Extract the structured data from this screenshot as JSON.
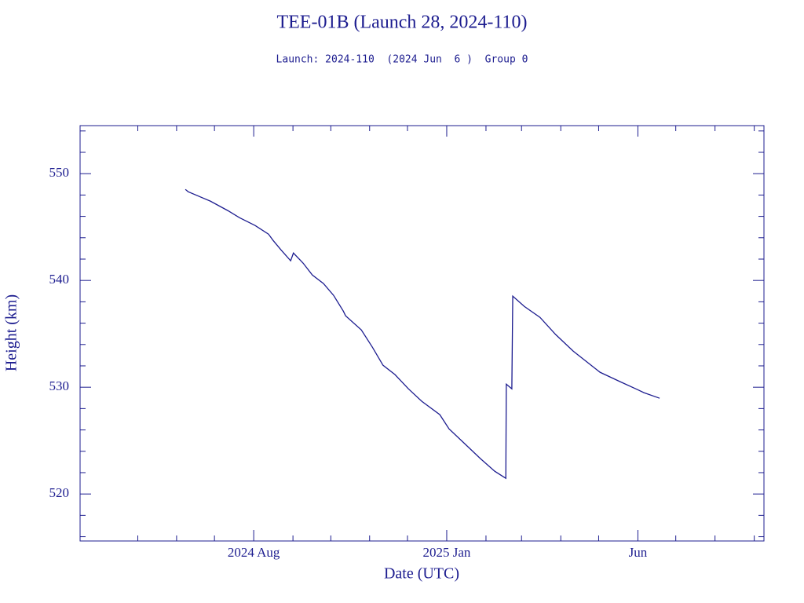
{
  "chart_data": {
    "type": "line",
    "title": "TEE-01B (Launch 28, 2024-110)",
    "subtitle": "Launch: 2024-110  (2024 Jun  6 )  Group 0",
    "xlabel": "Date (UTC)",
    "ylabel": "Height (km)",
    "color": "#1c1c8f",
    "x": [
      2024.434,
      2024.44,
      2024.488,
      2024.526,
      2024.551,
      2024.585,
      2024.614,
      2024.624,
      2024.641,
      2024.662,
      2024.668,
      2024.689,
      2024.709,
      2024.733,
      2024.755,
      2024.776,
      2024.781,
      2024.815,
      2024.839,
      2024.862,
      2024.888,
      2024.917,
      2024.946,
      2024.985,
      2025.005,
      2025.039,
      2025.073,
      2025.104,
      2025.128,
      2025.129,
      2025.141,
      2025.143,
      2025.168,
      2025.202,
      2025.236,
      2025.274,
      2025.332,
      2025.376,
      2025.413,
      2025.427,
      2025.461
    ],
    "values": [
      548.53,
      548.31,
      547.43,
      546.54,
      545.88,
      545.15,
      544.34,
      543.75,
      542.87,
      541.84,
      542.57,
      541.62,
      540.51,
      539.71,
      538.6,
      537.13,
      536.69,
      535.37,
      533.75,
      532.06,
      531.18,
      529.85,
      528.68,
      527.43,
      526.1,
      524.71,
      523.31,
      522.13,
      521.47,
      530.29,
      529.85,
      538.53,
      537.57,
      536.54,
      534.93,
      533.38,
      531.4,
      530.51,
      529.78,
      529.49,
      528.97
    ],
    "xlim": [
      2024.206,
      2025.687
    ],
    "xticks": [
      {
        "value": 2024.582,
        "label": "2024 Aug"
      },
      {
        "value": 2025.0,
        "label": "2025 Jan"
      },
      {
        "value": 2025.414,
        "label": "Jun"
      }
    ],
    "xminorticks": [
      2024.331,
      2024.415,
      2024.497,
      2024.667,
      2024.749,
      2024.833,
      2024.915,
      2025.085,
      2025.162,
      2025.247,
      2025.329,
      2025.496,
      2025.581,
      2025.666
    ],
    "ylim": [
      515.6,
      554.5
    ],
    "yticks": [
      520,
      530,
      540,
      550
    ],
    "yminorticks": [
      516,
      518,
      522,
      524,
      526,
      528,
      532,
      534,
      536,
      538,
      542,
      544,
      546,
      548,
      552,
      554
    ]
  }
}
